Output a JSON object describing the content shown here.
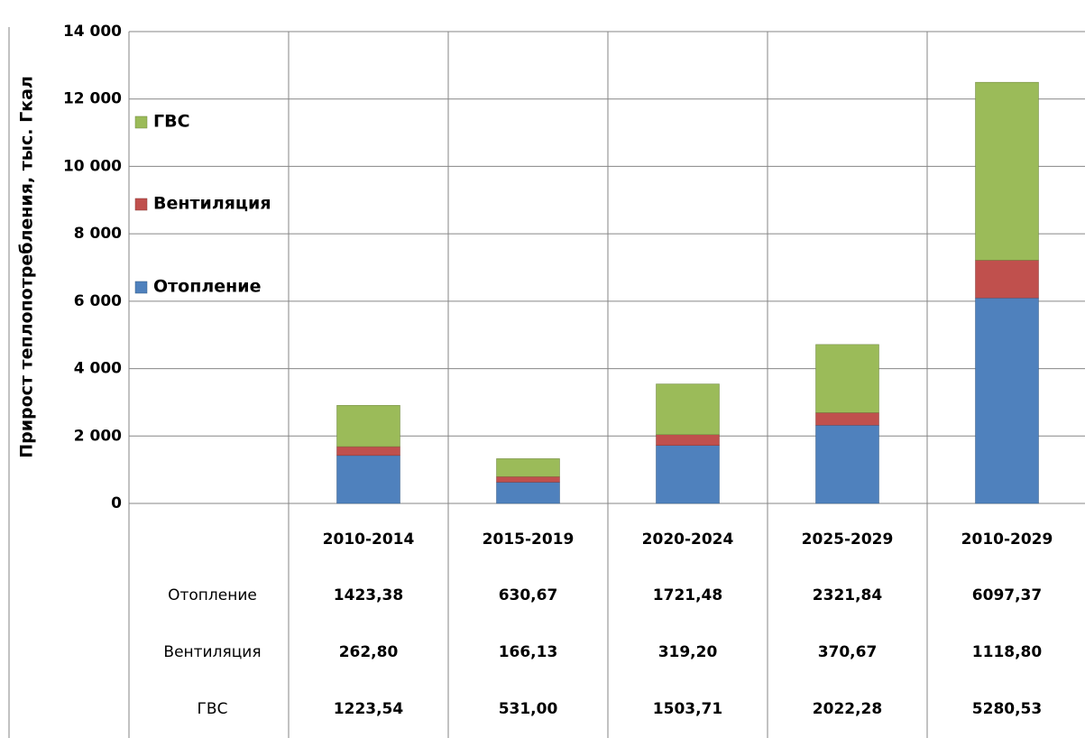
{
  "chart_data": {
    "type": "bar",
    "stacked": true,
    "y_label": "Прирост теплопотребления, тыс. Гкал",
    "categories": [
      "2010-2014",
      "2015-2019",
      "2020-2024",
      "2025-2029",
      "2010-2029"
    ],
    "series": [
      {
        "name": "Отопление",
        "color": "#4f81bd",
        "values": [
          1423.38,
          630.67,
          1721.48,
          2321.84,
          6097.37
        ],
        "value_labels": [
          "1423,38",
          "630,67",
          "1721,48",
          "2321,84",
          "6097,37"
        ]
      },
      {
        "name": "Вентиляция",
        "color": "#c0504d",
        "values": [
          262.8,
          166.13,
          319.2,
          370.67,
          1118.8
        ],
        "value_labels": [
          "262,80",
          "166,13",
          "319,20",
          "370,67",
          "1118,80"
        ]
      },
      {
        "name": "ГВС",
        "color": "#9bbb59",
        "values": [
          1223.54,
          531.0,
          1503.71,
          2022.28,
          5280.53
        ],
        "value_labels": [
          "1223,54",
          "531,00",
          "1503,71",
          "2022,28",
          "5280,53"
        ]
      }
    ],
    "ylim": [
      0,
      14000
    ],
    "yticks": [
      0,
      {
        "value": 2000,
        "label": "2 000"
      },
      {
        "value": 4000,
        "label": "4 000"
      },
      {
        "value": 6000,
        "label": "6 000"
      },
      {
        "value": 8000,
        "label": "8 000"
      },
      {
        "value": 10000,
        "label": "10 000"
      },
      {
        "value": 12000,
        "label": "12 000"
      },
      {
        "value": 14000,
        "label": "14 000"
      }
    ],
    "grid": true,
    "legend": "left"
  }
}
